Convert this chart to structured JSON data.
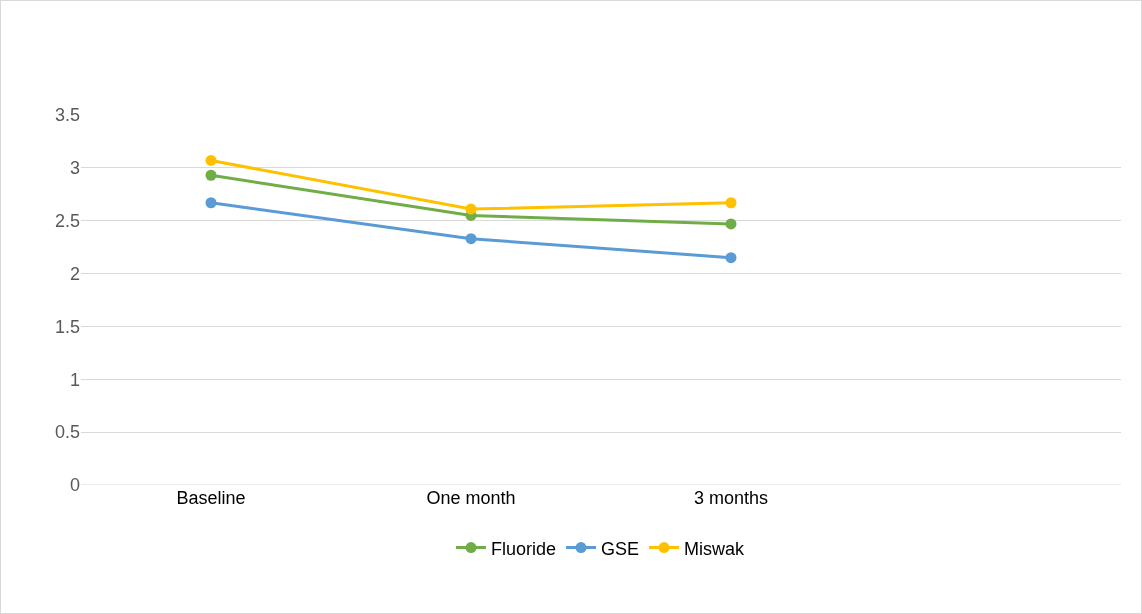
{
  "chart_data": {
    "type": "line",
    "categories": [
      "Baseline",
      "One month",
      "3 months",
      null
    ],
    "series": [
      {
        "name": "Fluoride",
        "color": "#70ad47",
        "values": [
          2.93,
          2.55,
          2.47,
          null
        ]
      },
      {
        "name": "GSE",
        "color": "#5b9bd5",
        "values": [
          2.67,
          2.33,
          2.15,
          null
        ]
      },
      {
        "name": "Miswak",
        "color": "#ffc000",
        "values": [
          3.07,
          2.61,
          2.67,
          null
        ]
      }
    ],
    "ylim": [
      0,
      3.5
    ],
    "yticks": [
      0,
      0.5,
      1,
      1.5,
      2,
      2.5,
      3,
      3.5
    ],
    "grid": "y",
    "legend": "bottom",
    "marker": "circle",
    "line_style": "solid"
  }
}
